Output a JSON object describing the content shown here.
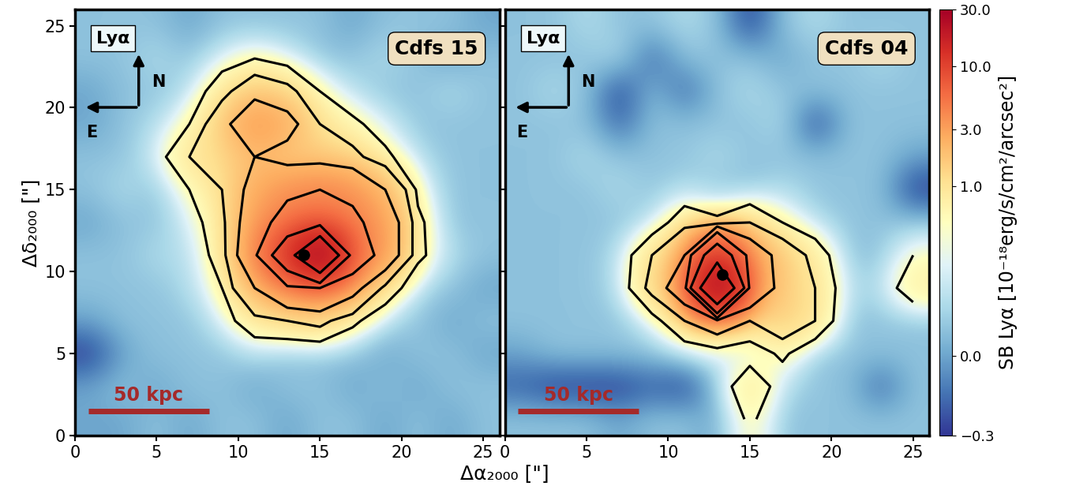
{
  "chart_data": [
    {
      "type": "heatmap",
      "name": "Cdfs 15",
      "line": "Lyα",
      "compass": [
        "N",
        "E"
      ],
      "ylabel": "Δδ₂₀₀₀ [\"]",
      "xlim": [
        0,
        26
      ],
      "ylim": [
        0,
        26
      ],
      "xticks": [
        0,
        5,
        10,
        15,
        20,
        25
      ],
      "yticks": [
        0,
        5,
        10,
        15,
        20,
        25
      ],
      "scale_bar": {
        "label": "50 kpc",
        "x": [
          0.8,
          8.2
        ],
        "y": 1.5
      },
      "peak": [
        14,
        11
      ],
      "contour_levels": [
        0.5,
        1,
        2,
        4,
        8,
        16
      ],
      "cells": [
        [
          0.1,
          0.1,
          0.1,
          0.0,
          0.1,
          0.1,
          0.1,
          0.1,
          0.0,
          0.1,
          0.1,
          0.1,
          0.0
        ],
        [
          0.1,
          0.1,
          0.2,
          0.1,
          0.3,
          0.5,
          0.3,
          0.1,
          0.1,
          0.2,
          0.1,
          0.0,
          0.1
        ],
        [
          0.0,
          0.1,
          0.1,
          0.2,
          0.8,
          1.5,
          1.2,
          0.5,
          0.2,
          0.1,
          0.1,
          0.2,
          0.1
        ],
        [
          0.0,
          0.1,
          0.2,
          0.5,
          1.5,
          3.5,
          2.5,
          1.0,
          0.6,
          0.3,
          0.1,
          0.1,
          0.1
        ],
        [
          0.1,
          0.1,
          0.3,
          1.0,
          1.2,
          2.0,
          1.5,
          1.5,
          1.2,
          0.6,
          0.2,
          0.1,
          0.1
        ],
        [
          0.1,
          0.2,
          0.1,
          0.5,
          1.0,
          2.5,
          3.5,
          4.0,
          3.5,
          2.0,
          0.4,
          0.1,
          0.1
        ],
        [
          0.0,
          0.1,
          0.1,
          0.3,
          0.8,
          3.0,
          5.0,
          6.0,
          4.5,
          3.0,
          0.6,
          0.1,
          0.1
        ],
        [
          0.1,
          0.1,
          0.2,
          0.2,
          0.7,
          3.5,
          12,
          30,
          6.0,
          3.0,
          0.6,
          0.2,
          0.1
        ],
        [
          0.1,
          0.1,
          0.1,
          0.2,
          0.5,
          2.0,
          3.5,
          4.0,
          2.5,
          0.8,
          0.2,
          0.1,
          0.0
        ],
        [
          0.0,
          0.1,
          0.1,
          0.1,
          0.3,
          0.8,
          1.0,
          1.2,
          0.6,
          0.2,
          0.1,
          0.0,
          0.1
        ],
        [
          -0.3,
          0.0,
          0.1,
          0.1,
          0.1,
          0.2,
          0.1,
          0.1,
          0.1,
          0.0,
          0.1,
          0.1,
          0.0
        ],
        [
          0.0,
          0.1,
          0.0,
          0.1,
          0.1,
          0.0,
          0.1,
          0.1,
          0.0,
          0.1,
          0.0,
          0.1,
          0.1
        ],
        [
          0.0,
          0.0,
          0.1,
          0.0,
          0.1,
          0.1,
          0.0,
          0.1,
          0.1,
          0.0,
          0.1,
          0.0,
          0.1
        ]
      ]
    },
    {
      "type": "heatmap",
      "name": "Cdfs 04",
      "line": "Lyα",
      "compass": [
        "N",
        "E"
      ],
      "tick_labels": "x",
      "xlim": [
        0,
        26
      ],
      "ylim": [
        0,
        26
      ],
      "xticks": [
        0,
        5,
        10,
        15,
        20,
        25
      ],
      "yticks": [
        0,
        5,
        10,
        15,
        20,
        25
      ],
      "scale_bar": {
        "label": "50 kpc",
        "x": [
          0.8,
          8.2
        ],
        "y": 1.5
      },
      "peak": [
        13.3,
        9.8
      ],
      "contour_levels": [
        0.5,
        1,
        2,
        4,
        8,
        16
      ],
      "cells": [
        [
          0.1,
          0.1,
          0.2,
          0.1,
          0.1,
          0.2,
          0.1,
          -0.3,
          0.1,
          0.2,
          0.1,
          0.1,
          0.1
        ],
        [
          0.1,
          0.1,
          0.1,
          0.2,
          -0.2,
          0.1,
          0.1,
          0.1,
          0.0,
          0.1,
          0.1,
          0.2,
          0.1
        ],
        [
          0.1,
          0.2,
          0.1,
          -0.3,
          0.1,
          -0.2,
          0.1,
          0.2,
          0.1,
          0.1,
          0.1,
          0.1,
          0.1
        ],
        [
          0.1,
          0.1,
          0.1,
          -0.2,
          0.1,
          0.1,
          0.1,
          0.1,
          0.2,
          -0.3,
          0.1,
          0.1,
          0.1
        ],
        [
          0.1,
          0.1,
          0.2,
          0.1,
          0.1,
          0.1,
          0.2,
          0.1,
          0.1,
          0.1,
          0.1,
          0.1,
          0.0
        ],
        [
          0.1,
          0.1,
          0.1,
          0.2,
          0.1,
          0.2,
          0.1,
          0.1,
          0.2,
          0.1,
          0.1,
          0.1,
          -0.3
        ],
        [
          0.1,
          0.1,
          0.1,
          0.1,
          0.2,
          0.8,
          0.6,
          1.0,
          0.5,
          0.2,
          0.1,
          0.1,
          0.1
        ],
        [
          0.1,
          0.1,
          0.1,
          0.2,
          1.0,
          2.0,
          12,
          3.0,
          1.5,
          0.8,
          0.1,
          0.1,
          0.5
        ],
        [
          0.1,
          0.1,
          0.1,
          0.2,
          1.2,
          3.0,
          30,
          3.5,
          1.5,
          1.0,
          0.2,
          0.2,
          0.8
        ],
        [
          0.1,
          0.1,
          0.1,
          0.1,
          0.3,
          1.0,
          1.5,
          1.0,
          1.5,
          1.0,
          0.1,
          0.1,
          0.1
        ],
        [
          0.0,
          0.1,
          0.1,
          0.1,
          0.1,
          0.2,
          0.3,
          0.2,
          0.6,
          0.1,
          0.1,
          0.1,
          0.1
        ],
        [
          -0.2,
          -0.3,
          -0.3,
          -0.3,
          -0.2,
          -0.3,
          0.1,
          1.0,
          0.2,
          0.1,
          0.1,
          -0.2,
          0.1
        ],
        [
          0.1,
          0.1,
          0.1,
          0.0,
          0.1,
          0.1,
          0.0,
          0.6,
          0.1,
          0.1,
          0.1,
          0.1,
          0.1
        ]
      ]
    }
  ],
  "xlabel": "Δα₂₀₀₀ [\"]",
  "colorbar": {
    "label": "SB Lyα [10⁻¹⁸erg/s/cm²/arcsec²]",
    "range": [
      -0.3,
      30
    ],
    "ticks": [
      {
        "value": -0.3,
        "label": "−0.3"
      },
      {
        "value": 0,
        "label": "0.0"
      },
      {
        "value": 1,
        "label": "1.0"
      },
      {
        "value": 3,
        "label": "3.0"
      },
      {
        "value": 10,
        "label": "10.0"
      },
      {
        "value": 30,
        "label": "30.0"
      }
    ]
  }
}
